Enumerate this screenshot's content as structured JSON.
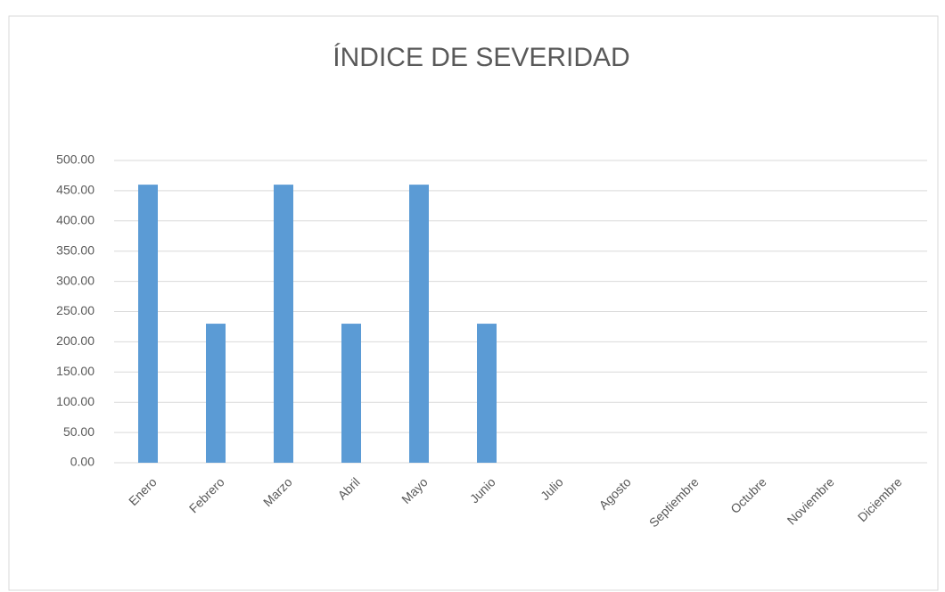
{
  "chart_data": {
    "type": "bar",
    "title": "ÍNDICE DE SEVERIDAD",
    "categories": [
      "Enero",
      "Febrero",
      "Marzo",
      "Abril",
      "Mayo",
      "Junio",
      "Julio",
      "Agosto",
      "Septiembre",
      "Octubre",
      "Noviembre",
      "Diciembre"
    ],
    "values": [
      460,
      230,
      460,
      230,
      460,
      230,
      0,
      0,
      0,
      0,
      0,
      0
    ],
    "color": "#5b9bd5",
    "ylim": [
      0,
      500
    ],
    "yticks": [
      {
        "value": 0,
        "label": "0.00"
      },
      {
        "value": 50,
        "label": "50.00"
      },
      {
        "value": 100,
        "label": "100.00"
      },
      {
        "value": 150,
        "label": "150.00"
      },
      {
        "value": 200,
        "label": "200.00"
      },
      {
        "value": 250,
        "label": "250.00"
      },
      {
        "value": 300,
        "label": "300.00"
      },
      {
        "value": 350,
        "label": "350.00"
      },
      {
        "value": 400,
        "label": "400.00"
      },
      {
        "value": 450,
        "label": "450.00"
      },
      {
        "value": 500,
        "label": "500.00"
      }
    ],
    "grid": true
  }
}
